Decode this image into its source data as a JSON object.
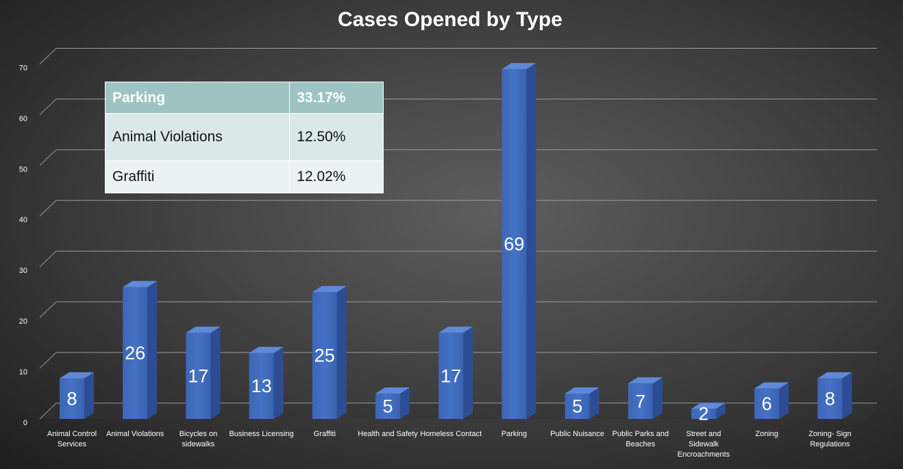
{
  "chart_data": {
    "type": "bar3d",
    "title": "Cases Opened by Type",
    "categories": [
      "Animal Control Services",
      "Animal Violations",
      "Bicycles on sidewalks",
      "Business Licensing",
      "Graffiti",
      "Health and Safety",
      "Homeless Contact",
      "Parking",
      "Public Nuisance",
      "Public Parks and Beaches",
      "Street and Sidewalk Encroachments",
      "Zoning",
      "Zoning- Sign Regulations"
    ],
    "values": [
      8,
      26,
      17,
      13,
      25,
      5,
      17,
      69,
      5,
      7,
      2,
      6,
      8
    ],
    "color": "#4472c4",
    "ylim": [
      0,
      70
    ],
    "yticks": [
      0,
      10,
      20,
      30,
      40,
      50,
      60,
      70
    ],
    "grid": true,
    "table": {
      "rows": [
        [
          "Parking",
          "33.17%"
        ],
        [
          "Animal Violations",
          "12.50%"
        ],
        [
          "Graffiti",
          "12.02%"
        ]
      ]
    }
  }
}
